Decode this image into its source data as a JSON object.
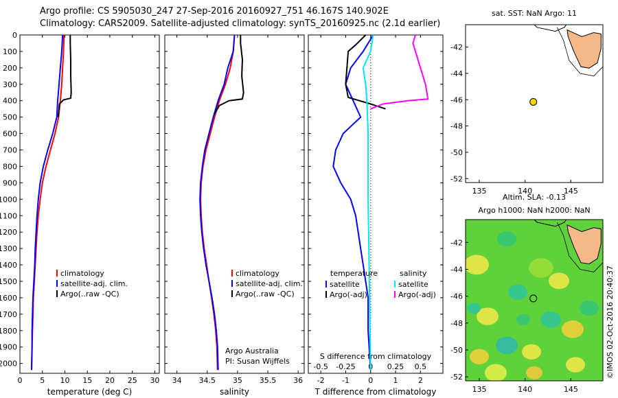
{
  "header": {
    "line1": "Argo profile: CS 5905030_247 27-Sep-2016 20160927_751 46.167S 140.902E",
    "line2": "Climatology: CARS2009. Satellite-adjusted climatology: synTS_20160925.nc (2.1d earlier)"
  },
  "colors": {
    "climatology": "#ff0000",
    "satellite": "#0000ff",
    "argo": "#000000",
    "sal_satellite": "#00e5ff",
    "sal_argo": "#ff00ff",
    "land": "#f5b888",
    "float_marker": "#ffd400"
  },
  "chart_data": [
    {
      "type": "line",
      "panel": "temperature",
      "xlabel": "temperature (deg C)",
      "ylabel": "",
      "xlim": [
        0,
        31
      ],
      "ylim": [
        2060,
        0
      ],
      "xticks": [
        "0",
        "5",
        "10",
        "15",
        "20",
        "25",
        "30"
      ],
      "yticks": [
        "0",
        "100",
        "200",
        "300",
        "400",
        "500",
        "600",
        "700",
        "800",
        "900",
        "1000",
        "1100",
        "1200",
        "1300",
        "1400",
        "1500",
        "1600",
        "1700",
        "1800",
        "1900",
        "2000"
      ],
      "legend": [
        "climatology",
        "satellite-adj. clim.",
        "Argo(..raw -QC)"
      ],
      "series": [
        {
          "name": "climatology",
          "x": [
            9.8,
            9.7,
            9.5,
            9.3,
            9.0,
            8.6,
            7.8,
            6.8,
            5.8,
            5.0,
            4.5,
            4.1,
            3.8,
            3.6,
            3.4,
            3.2,
            3.0,
            2.9,
            2.8,
            2.7,
            2.6
          ],
          "y": [
            0,
            100,
            200,
            300,
            400,
            500,
            600,
            700,
            800,
            900,
            1000,
            1100,
            1200,
            1300,
            1400,
            1500,
            1600,
            1700,
            1800,
            1900,
            2040
          ]
        },
        {
          "name": "satellite-adj. clim.",
          "x": [
            9.5,
            9.3,
            9.0,
            8.7,
            8.4,
            8.2,
            7.3,
            6.2,
            5.2,
            4.5,
            4.1,
            3.8,
            3.6,
            3.4,
            3.3,
            3.1,
            2.9,
            2.8,
            2.7,
            2.7,
            2.6
          ],
          "y": [
            0,
            100,
            200,
            300,
            400,
            500,
            600,
            700,
            800,
            900,
            1000,
            1100,
            1200,
            1300,
            1400,
            1500,
            1600,
            1700,
            1800,
            1900,
            2040
          ]
        },
        {
          "name": "Argo(..raw -QC)",
          "x": [
            11.2,
            11.2,
            11.3,
            11.3,
            11.4,
            11.3,
            9.7,
            8.8,
            8.5
          ],
          "y": [
            0,
            50,
            150,
            250,
            350,
            385,
            395,
            420,
            500
          ]
        }
      ]
    },
    {
      "type": "line",
      "panel": "salinity",
      "xlabel": "salinity",
      "xlim": [
        33.8,
        36.1
      ],
      "ylim": [
        2060,
        0
      ],
      "xticks": [
        "34",
        "34.5",
        "35",
        "35.5",
        "36"
      ],
      "legend": [
        "climatology",
        "satellite-adj. clim.",
        "Argo(..raw -QC)"
      ],
      "annotation": [
        "Argo Australia",
        "PI: Susan Wijffels"
      ],
      "series": [
        {
          "name": "climatology",
          "x": [
            34.95,
            34.93,
            34.88,
            34.8,
            34.7,
            34.62,
            34.55,
            34.48,
            34.43,
            34.4,
            34.39,
            34.4,
            34.42,
            34.45,
            34.49,
            34.53,
            34.57,
            34.61,
            34.64,
            34.66,
            34.67
          ],
          "y": [
            0,
            100,
            200,
            300,
            400,
            500,
            600,
            700,
            800,
            900,
            1000,
            1100,
            1200,
            1300,
            1400,
            1500,
            1600,
            1700,
            1800,
            1900,
            2040
          ]
        },
        {
          "name": "satellite-adj. clim.",
          "x": [
            34.95,
            34.93,
            34.84,
            34.78,
            34.68,
            34.6,
            34.53,
            34.46,
            34.42,
            34.39,
            34.38,
            34.39,
            34.41,
            34.44,
            34.48,
            34.53,
            34.58,
            34.62,
            34.65,
            34.67,
            34.68
          ],
          "y": [
            0,
            100,
            200,
            300,
            400,
            500,
            600,
            700,
            800,
            900,
            1000,
            1100,
            1200,
            1300,
            1400,
            1500,
            1600,
            1700,
            1800,
            1900,
            2040
          ]
        },
        {
          "name": "Argo(..raw -QC)",
          "x": [
            35.05,
            35.05,
            35.08,
            35.07,
            35.1,
            35.08,
            34.86,
            34.7,
            34.62
          ],
          "y": [
            0,
            50,
            150,
            250,
            350,
            390,
            400,
            430,
            480
          ]
        }
      ]
    },
    {
      "type": "line",
      "panel": "differences",
      "xlabel": "T difference from climatology",
      "secondary_xlabel": "S difference from climatology",
      "xlim": [
        -2.5,
        2.9
      ],
      "ylim": [
        2060,
        0
      ],
      "xticks": [
        "-2",
        "-1",
        "0",
        "1",
        "2"
      ],
      "secondary_xticks": [
        "-0.5",
        "-0.25",
        "0",
        "0.25",
        "0.5"
      ],
      "legend_titles": [
        "temperature",
        "salinity"
      ],
      "legend": [
        "satellite",
        "Argo(-adj)",
        "satellite",
        "Argo(-adj)"
      ],
      "series": [
        {
          "name": "temperature satellite",
          "x": [
            0.1,
            -0.3,
            -0.8,
            -1.0,
            -0.7,
            -0.4,
            -1.1,
            -1.4,
            -1.5,
            -1.2,
            -0.8,
            -0.6,
            -0.5,
            -0.4,
            -0.3,
            -0.2,
            -0.1,
            -0.1,
            -0.1,
            0.0
          ],
          "y": [
            0,
            100,
            200,
            300,
            400,
            500,
            600,
            700,
            800,
            900,
            1000,
            1100,
            1200,
            1300,
            1400,
            1500,
            1600,
            1700,
            1800,
            2040
          ]
        },
        {
          "name": "temperature Argo(-adj)",
          "x": [
            -0.2,
            -0.6,
            -0.9,
            -1.0,
            -0.9,
            0.0,
            0.6
          ],
          "y": [
            0,
            60,
            100,
            300,
            380,
            420,
            450
          ]
        },
        {
          "name": "salinity satellite",
          "x": [
            0.1,
            0.0,
            -0.3,
            -0.2,
            -0.15,
            -0.1,
            -0.1,
            -0.05,
            0.0
          ],
          "y": [
            0,
            100,
            200,
            300,
            400,
            600,
            1000,
            1500,
            2040
          ]
        },
        {
          "name": "salinity Argo(-adj)",
          "x": [
            1.8,
            1.7,
            1.9,
            2.2,
            2.3,
            1.5,
            0.5,
            0.0
          ],
          "y": [
            0,
            50,
            150,
            300,
            390,
            400,
            420,
            450
          ]
        }
      ]
    },
    {
      "type": "scatter",
      "panel": "sst-map",
      "title": "sat. SST: NaN  Argo: 11",
      "xlim": [
        133.5,
        148.5
      ],
      "ylim": [
        -52.3,
        -40.3
      ],
      "xticks": [
        "135",
        "140",
        "145"
      ],
      "yticks": [
        "-42",
        "-44",
        "-46",
        "-48",
        "-50",
        "-52"
      ],
      "points": [
        {
          "lon": 140.902,
          "lat": -46.167
        }
      ]
    },
    {
      "type": "heatmap",
      "panel": "sla-map",
      "title": "Altim. SLA: -0.13",
      "subtitle": "Argo h1000: NaN  h2000: NaN",
      "xlim": [
        133.5,
        148.5
      ],
      "ylim": [
        -52.3,
        -40.3
      ],
      "xticks": [
        "135",
        "140",
        "145"
      ],
      "yticks": [
        "-42",
        "-44",
        "-46",
        "-48",
        "-50",
        "-52"
      ],
      "points": [
        {
          "lon": 140.902,
          "lat": -46.167
        }
      ],
      "side_label": "©IMOS 02-Oct-2016 20:40:37"
    }
  ]
}
